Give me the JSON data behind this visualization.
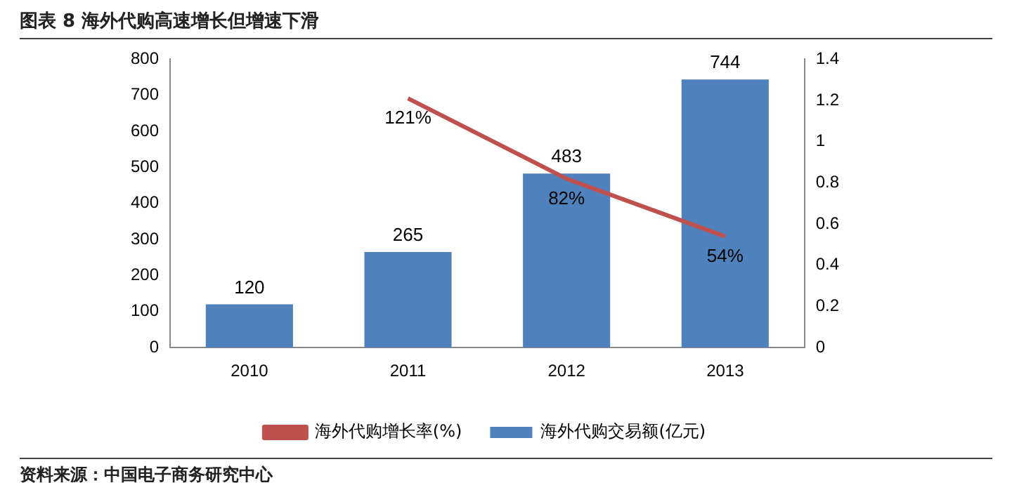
{
  "chart_data": {
    "type": "bar",
    "title": "图表 8  海外代购高速增长但增速下滑",
    "categories": [
      "2010",
      "2011",
      "2012",
      "2013"
    ],
    "series": [
      {
        "name": "海外代购交易额(亿元)",
        "color": "#4f81bd",
        "values": [
          120,
          265,
          483,
          744
        ],
        "value_labels": [
          "120",
          "265",
          "483",
          "744"
        ]
      },
      {
        "name": "海外代购增长率(%)",
        "type": "line",
        "axis": "y2",
        "color": "#c0504d",
        "values": [
          null,
          1.21,
          0.82,
          0.54
        ],
        "value_labels": [
          null,
          "121%",
          "82%",
          "54%"
        ]
      }
    ],
    "ylim": [
      0,
      800
    ],
    "yticks": [
      0,
      100,
      200,
      300,
      400,
      500,
      600,
      700,
      800
    ],
    "y2lim": [
      0,
      1.4
    ],
    "y2ticks": [
      0,
      0.2,
      0.4,
      0.6,
      0.8,
      1,
      1.2,
      1.4
    ],
    "grid": false,
    "legend": "bottom",
    "marker": "none",
    "annotations": [
      "资料来源：中国电子商务研究中心"
    ]
  }
}
